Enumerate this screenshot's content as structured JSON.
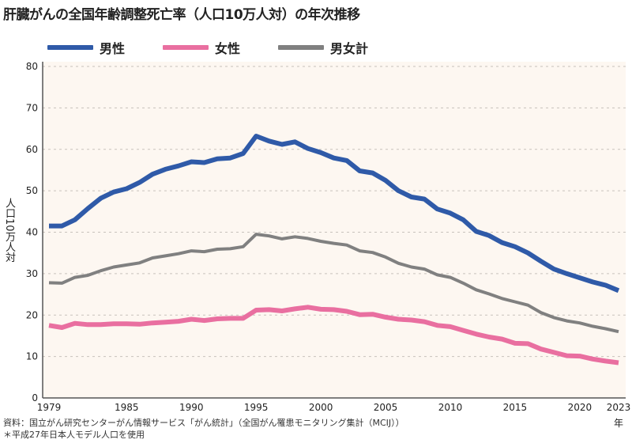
{
  "title": "肝臓がんの全国年齢調整死亡率（人口10万人対）の年次推移",
  "footnotes": [
    "資料：国立がん研究センターがん情報サービス「がん統計」（全国がん罹患モニタリング集計（MCIJ））",
    "＊平成27年日本人モデル人口を使用"
  ],
  "chart_data": {
    "type": "line",
    "ylabel": "人口10万人対",
    "xunit": "年",
    "ylim": [
      0,
      80
    ],
    "yticks": [
      0,
      10,
      20,
      30,
      40,
      50,
      60,
      70,
      80
    ],
    "xticks": [
      1979,
      1985,
      1990,
      1995,
      2000,
      2005,
      2010,
      2015,
      2020,
      2023
    ],
    "grid": true,
    "legend": "top",
    "x": [
      1979,
      1980,
      1981,
      1982,
      1983,
      1984,
      1985,
      1986,
      1987,
      1988,
      1989,
      1990,
      1991,
      1992,
      1993,
      1994,
      1995,
      1996,
      1997,
      1998,
      1999,
      2000,
      2001,
      2002,
      2003,
      2004,
      2005,
      2006,
      2007,
      2008,
      2009,
      2010,
      2011,
      2012,
      2013,
      2014,
      2015,
      2016,
      2017,
      2018,
      2019,
      2020,
      2021,
      2022,
      2023
    ],
    "series": [
      {
        "name": "男性",
        "color": "#2f5aa8",
        "values": [
          41.5,
          41.5,
          43,
          45.7,
          48.2,
          49.7,
          50.5,
          52,
          54,
          55.2,
          56,
          57,
          56.8,
          57.7,
          57.9,
          59,
          63.2,
          62,
          61.2,
          61.8,
          60.2,
          59.2,
          57.9,
          57.3,
          54.8,
          54.3,
          52.5,
          50,
          48.5,
          48,
          45.6,
          44.6,
          43,
          40.2,
          39.2,
          37.5,
          36.5,
          35,
          33,
          31.1,
          30,
          29,
          28,
          27.2,
          25.9
        ]
      },
      {
        "name": "女性",
        "color": "#e96fa0",
        "values": [
          17.5,
          17,
          18,
          17.7,
          17.7,
          17.9,
          17.9,
          17.8,
          18.1,
          18.3,
          18.5,
          19,
          18.7,
          19.1,
          19.2,
          19.2,
          21.2,
          21.3,
          21,
          21.5,
          21.9,
          21.4,
          21.3,
          20.9,
          20.1,
          20.2,
          19.5,
          19,
          18.8,
          18.4,
          17.5,
          17.2,
          16.3,
          15.4,
          14.7,
          14.2,
          13.2,
          13.1,
          11.8,
          11,
          10.2,
          10.1,
          9.4,
          8.9,
          8.5
        ]
      },
      {
        "name": "男女計",
        "color": "#808080",
        "values": [
          27.8,
          27.7,
          29.1,
          29.6,
          30.7,
          31.6,
          32.1,
          32.6,
          33.8,
          34.3,
          34.8,
          35.5,
          35.3,
          35.9,
          36,
          36.5,
          39.5,
          39.1,
          38.4,
          38.9,
          38.5,
          37.8,
          37.3,
          36.9,
          35.5,
          35.1,
          34,
          32.5,
          31.6,
          31.1,
          29.7,
          29.1,
          27.7,
          26.1,
          25.1,
          24,
          23.2,
          22.4,
          20.6,
          19.4,
          18.6,
          18.1,
          17.3,
          16.7,
          16
        ]
      }
    ]
  }
}
